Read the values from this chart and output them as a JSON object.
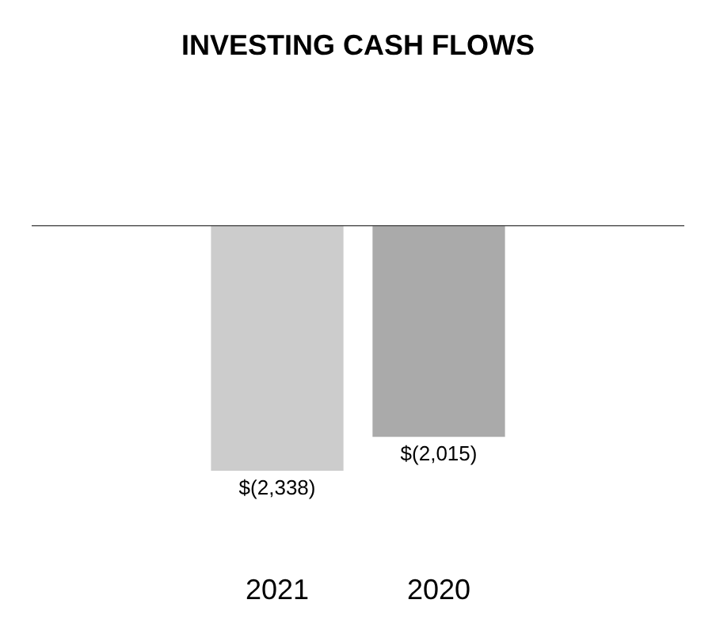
{
  "chart_data": {
    "type": "bar",
    "title": "INVESTING CASH FLOWS",
    "categories": [
      "2021",
      "2020"
    ],
    "values": [
      -2338,
      -2015
    ],
    "colors": [
      "#cccccc",
      "#aaaaaa"
    ],
    "value_labels": [
      "$(2,338)",
      "$(2,015)"
    ]
  }
}
